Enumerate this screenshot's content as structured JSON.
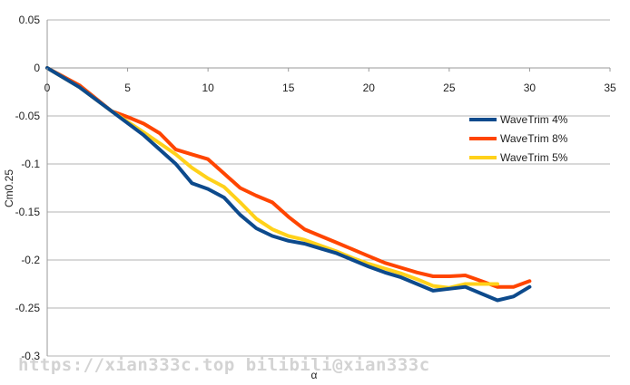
{
  "chart_data": {
    "type": "line",
    "title": "",
    "xlabel": "α",
    "ylabel": "Cm0.25",
    "xlim": [
      0,
      35
    ],
    "ylim": [
      -0.3,
      0.05
    ],
    "x_ticks": [
      0,
      5,
      10,
      15,
      20,
      25,
      30,
      35
    ],
    "y_ticks": [
      0.05,
      0,
      -0.05,
      -0.1,
      -0.15,
      -0.2,
      -0.25,
      -0.3
    ],
    "x_tick_labels": [
      "0",
      "5",
      "10",
      "15",
      "20",
      "25",
      "30",
      "35"
    ],
    "y_tick_labels": [
      "0.05",
      "0",
      "-0.05",
      "-0.1",
      "-0.15",
      "-0.2",
      "-0.25",
      "-0.3"
    ],
    "grid": "horizontal",
    "legend_position": "right",
    "series": [
      {
        "name": "WaveTrim 4%",
        "color": "#0d4a8c",
        "points": [
          [
            0,
            0
          ],
          [
            2,
            -0.02
          ],
          [
            4,
            -0.045
          ],
          [
            6,
            -0.07
          ],
          [
            8,
            -0.1
          ],
          [
            9,
            -0.12
          ],
          [
            10,
            -0.126
          ],
          [
            11,
            -0.135
          ],
          [
            12,
            -0.153
          ],
          [
            13,
            -0.167
          ],
          [
            14,
            -0.175
          ],
          [
            15,
            -0.18
          ],
          [
            16,
            -0.183
          ],
          [
            17,
            -0.188
          ],
          [
            18,
            -0.193
          ],
          [
            19,
            -0.2
          ],
          [
            20,
            -0.207
          ],
          [
            21,
            -0.213
          ],
          [
            22,
            -0.218
          ],
          [
            23,
            -0.225
          ],
          [
            24,
            -0.232
          ],
          [
            25,
            -0.23
          ],
          [
            26,
            -0.228
          ],
          [
            27,
            -0.235
          ],
          [
            28,
            -0.242
          ],
          [
            29,
            -0.238
          ],
          [
            30,
            -0.228
          ]
        ]
      },
      {
        "name": "WaveTrim 8%",
        "color": "#ff4500",
        "points": [
          [
            0,
            0
          ],
          [
            2,
            -0.018
          ],
          [
            4,
            -0.045
          ],
          [
            5,
            -0.051
          ],
          [
            6,
            -0.058
          ],
          [
            7,
            -0.068
          ],
          [
            8,
            -0.085
          ],
          [
            9,
            -0.09
          ],
          [
            10,
            -0.095
          ],
          [
            11,
            -0.11
          ],
          [
            12,
            -0.125
          ],
          [
            13,
            -0.133
          ],
          [
            14,
            -0.14
          ],
          [
            15,
            -0.155
          ],
          [
            16,
            -0.168
          ],
          [
            17,
            -0.175
          ],
          [
            18,
            -0.182
          ],
          [
            19,
            -0.189
          ],
          [
            20,
            -0.196
          ],
          [
            21,
            -0.203
          ],
          [
            22,
            -0.208
          ],
          [
            23,
            -0.213
          ],
          [
            24,
            -0.217
          ],
          [
            25,
            -0.217
          ],
          [
            26,
            -0.216
          ],
          [
            27,
            -0.222
          ],
          [
            28,
            -0.228
          ],
          [
            29,
            -0.228
          ],
          [
            30,
            -0.222
          ]
        ]
      },
      {
        "name": "WaveTrim 5%",
        "color": "#ffd11a",
        "points": [
          [
            0,
            0
          ],
          [
            2,
            -0.02
          ],
          [
            4,
            -0.045
          ],
          [
            6,
            -0.067
          ],
          [
            8,
            -0.09
          ],
          [
            9,
            -0.104
          ],
          [
            10,
            -0.115
          ],
          [
            11,
            -0.124
          ],
          [
            12,
            -0.14
          ],
          [
            13,
            -0.157
          ],
          [
            14,
            -0.168
          ],
          [
            15,
            -0.175
          ],
          [
            16,
            -0.179
          ],
          [
            17,
            -0.185
          ],
          [
            18,
            -0.191
          ],
          [
            19,
            -0.198
          ],
          [
            20,
            -0.204
          ],
          [
            21,
            -0.209
          ],
          [
            22,
            -0.214
          ],
          [
            23,
            -0.22
          ],
          [
            24,
            -0.227
          ],
          [
            25,
            -0.229
          ],
          [
            26,
            -0.225
          ],
          [
            27,
            -0.225
          ],
          [
            28,
            -0.225
          ]
        ]
      }
    ]
  },
  "watermark": "https://xian333c.top bilibili@xian333c",
  "colors": {
    "background": "#ffffff",
    "gridline": "#b3b3b3",
    "axis": "#999999"
  }
}
